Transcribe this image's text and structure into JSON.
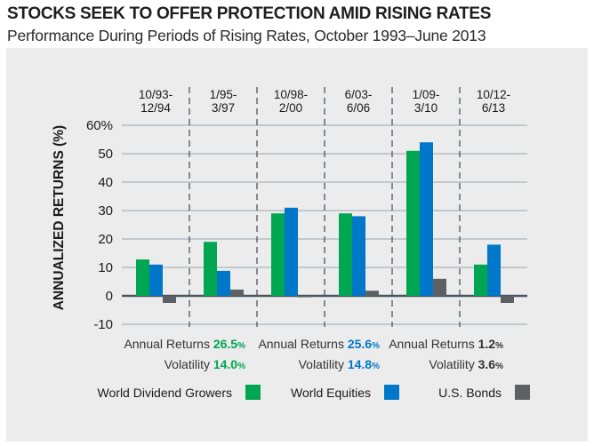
{
  "header": {
    "title": "STOCKS SEEK TO OFFER PROTECTION AMID RISING RATES",
    "subtitle": "Performance During Periods of Rising Rates, October 1993–June 2013"
  },
  "chart_data": {
    "type": "bar",
    "title": "STOCKS SEEK TO OFFER PROTECTION AMID RISING RATES",
    "subtitle": "Performance During Periods of Rising Rates, October 1993–June 2013",
    "xlabel": "",
    "ylabel": "ANNUALIZED RETURNS (%)",
    "ylim": [
      -10,
      60
    ],
    "yticks": [
      -10,
      0,
      10,
      20,
      30,
      40,
      50,
      60
    ],
    "ytick_labels": [
      "-10",
      "0",
      "10",
      "20",
      "30",
      "40",
      "50",
      "60%"
    ],
    "grid": true,
    "legend_position": "bottom",
    "categories": [
      [
        "10/93-",
        "12/94"
      ],
      [
        "1/95-",
        "3/97"
      ],
      [
        "10/98-",
        "2/00"
      ],
      [
        "6/03-",
        "6/06"
      ],
      [
        "1/09-",
        "3/10"
      ],
      [
        "10/12-",
        "6/13"
      ]
    ],
    "series": [
      {
        "name": "World Dividend Growers",
        "color": "#00a651",
        "values": [
          12.8,
          19.0,
          29.0,
          29.0,
          51.0,
          11.0
        ]
      },
      {
        "name": "World Equities",
        "color": "#0077c8",
        "values": [
          11.0,
          8.8,
          31.0,
          28.0,
          54.0,
          18.0
        ]
      },
      {
        "name": "U.S. Bonds",
        "color": "#5d6165",
        "values": [
          -2.5,
          2.2,
          -0.5,
          1.8,
          6.0,
          -2.5
        ]
      }
    ],
    "summary_stats": [
      {
        "series": "World Dividend Growers",
        "annual_returns_label": "Annual Returns",
        "annual_returns": "26.5",
        "volatility_label": "Volatility",
        "volatility": "14.0",
        "unit": "%",
        "color": "#00a651"
      },
      {
        "series": "World Equities",
        "annual_returns_label": "Annual Returns",
        "annual_returns": "25.6",
        "volatility_label": "Volatility",
        "volatility": "14.8",
        "unit": "%",
        "color": "#0077c8"
      },
      {
        "series": "U.S. Bonds",
        "annual_returns_label": "Annual Returns",
        "annual_returns": "1.2",
        "volatility_label": "Volatility",
        "volatility": "3.6",
        "unit": "%",
        "color": "#333333"
      }
    ]
  }
}
